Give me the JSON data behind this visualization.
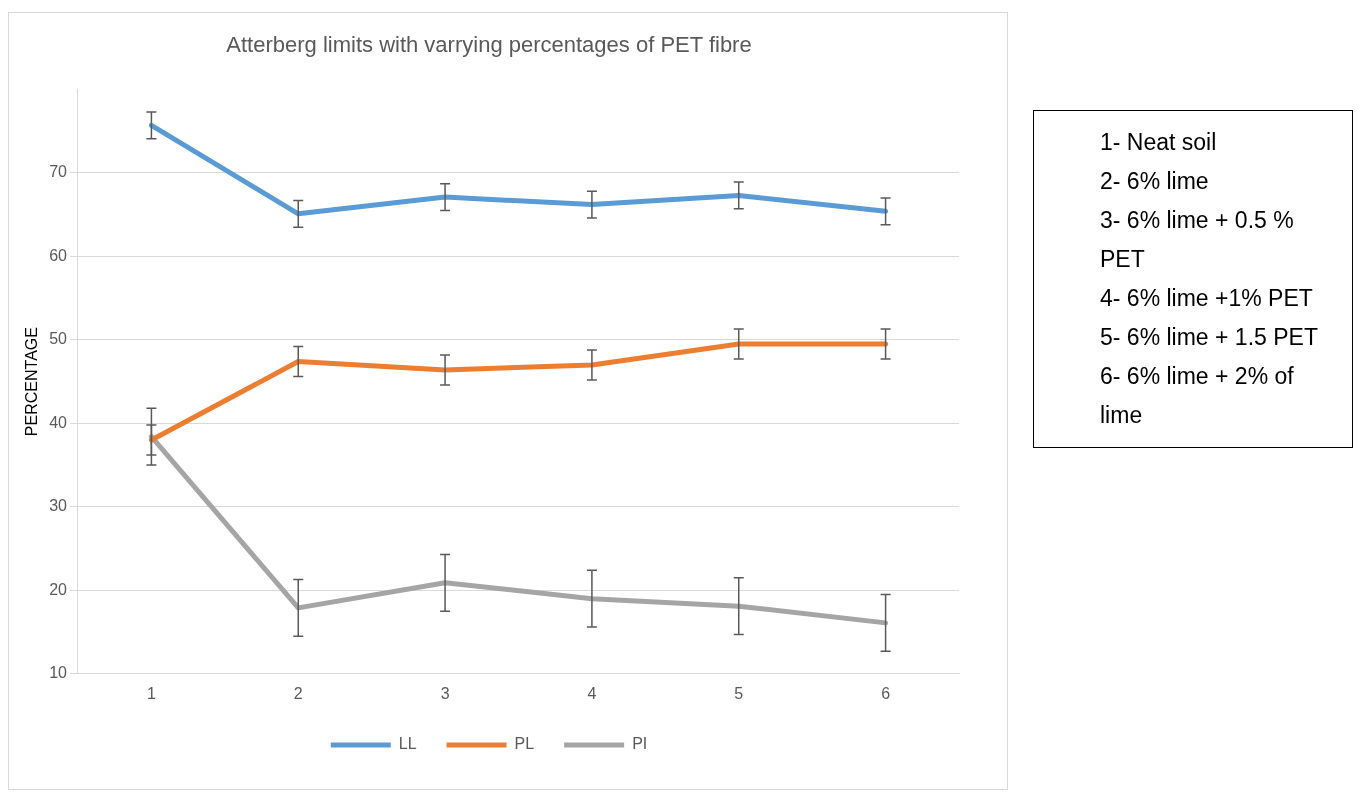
{
  "chart_data": {
    "type": "line",
    "title": "Atterberg limits with varrying percentages of PET fibre",
    "ylabel": "PERCENTAGE",
    "categories": [
      "1",
      "2",
      "3",
      "4",
      "5",
      "6"
    ],
    "series": [
      {
        "name": "LL",
        "color": "#5b9bd5",
        "values": [
          75.7,
          65.1,
          67.1,
          66.2,
          67.3,
          65.4
        ],
        "errors": [
          1.6,
          1.6,
          1.6,
          1.6,
          1.6,
          1.6
        ]
      },
      {
        "name": "PL",
        "color": "#ed7d31",
        "values": [
          38.0,
          47.4,
          46.4,
          47.0,
          49.5,
          49.5
        ],
        "errors": [
          1.8,
          1.8,
          1.8,
          1.8,
          1.8,
          1.8
        ]
      },
      {
        "name": "PI",
        "color": "#a5a5a5",
        "values": [
          38.4,
          17.9,
          20.9,
          19.0,
          18.1,
          16.1
        ],
        "errors": [
          3.4,
          3.4,
          3.4,
          3.4,
          3.4,
          3.4
        ]
      }
    ],
    "ylim": [
      10,
      80
    ],
    "yticks": [
      10,
      20,
      30,
      40,
      50,
      60,
      70
    ],
    "grid": "y",
    "legend": "bottom",
    "marker": "none",
    "annotations": [
      "1- Neat soil",
      "2- 6% lime",
      "3- 6% lime + 0.5 % PET",
      "4- 6% lime +1% PET",
      "5- 6% lime + 1.5 PET",
      "6- 6% lime + 2% of lime"
    ]
  }
}
